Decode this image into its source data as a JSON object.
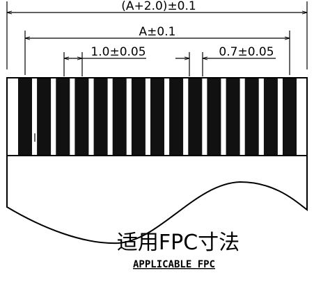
{
  "dimensions": {
    "overall": "(A+2.0)±0.1",
    "pad_span": "A±0.1",
    "pitch": "1.0±0.05",
    "pad_width": "0.7±0.05"
  },
  "title": {
    "chinese": "适用FPC寸法",
    "english": "APPLICABLE FPC"
  },
  "pads": {
    "count": 15,
    "color": "#111111"
  },
  "colors": {
    "line": "#000000",
    "background": "#ffffff"
  }
}
